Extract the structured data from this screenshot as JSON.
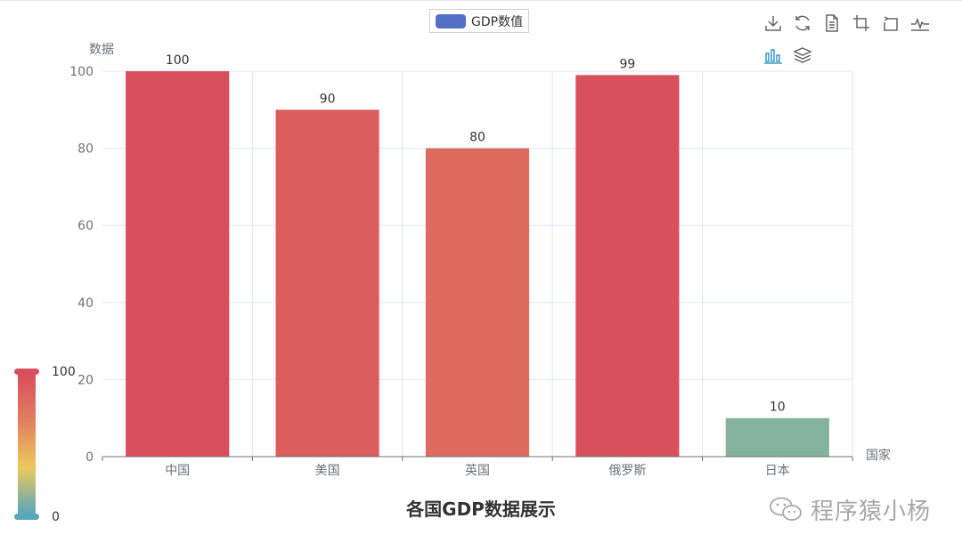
{
  "legend": {
    "label": "GDP数值"
  },
  "toolbox": {
    "icons": [
      "download-icon",
      "refresh-icon",
      "data-view-icon",
      "zoom-icon",
      "zoom-reset-icon",
      "line-chart-icon",
      "bar-chart-icon",
      "stack-icon"
    ]
  },
  "chart_data": {
    "type": "bar",
    "title": "各国GDP数据展示",
    "xlabel": "国家",
    "ylabel": "数据",
    "categories": [
      "中国",
      "美国",
      "英国",
      "俄罗斯",
      "日本"
    ],
    "series": [
      {
        "name": "GDP数值",
        "values": [
          100,
          90,
          80,
          99,
          10
        ]
      }
    ],
    "ylim": [
      0,
      100
    ],
    "yticks": [
      0,
      20,
      40,
      60,
      80,
      100
    ],
    "grid": true,
    "legend_position": "top-center",
    "visual_map": {
      "min": 0,
      "max": 100,
      "min_label": "0",
      "max_label": "100",
      "colors": [
        "#58a7bd",
        "#edc85a",
        "#e08060",
        "#d94e5d"
      ]
    }
  },
  "watermark": {
    "text": "程序猿小杨"
  }
}
